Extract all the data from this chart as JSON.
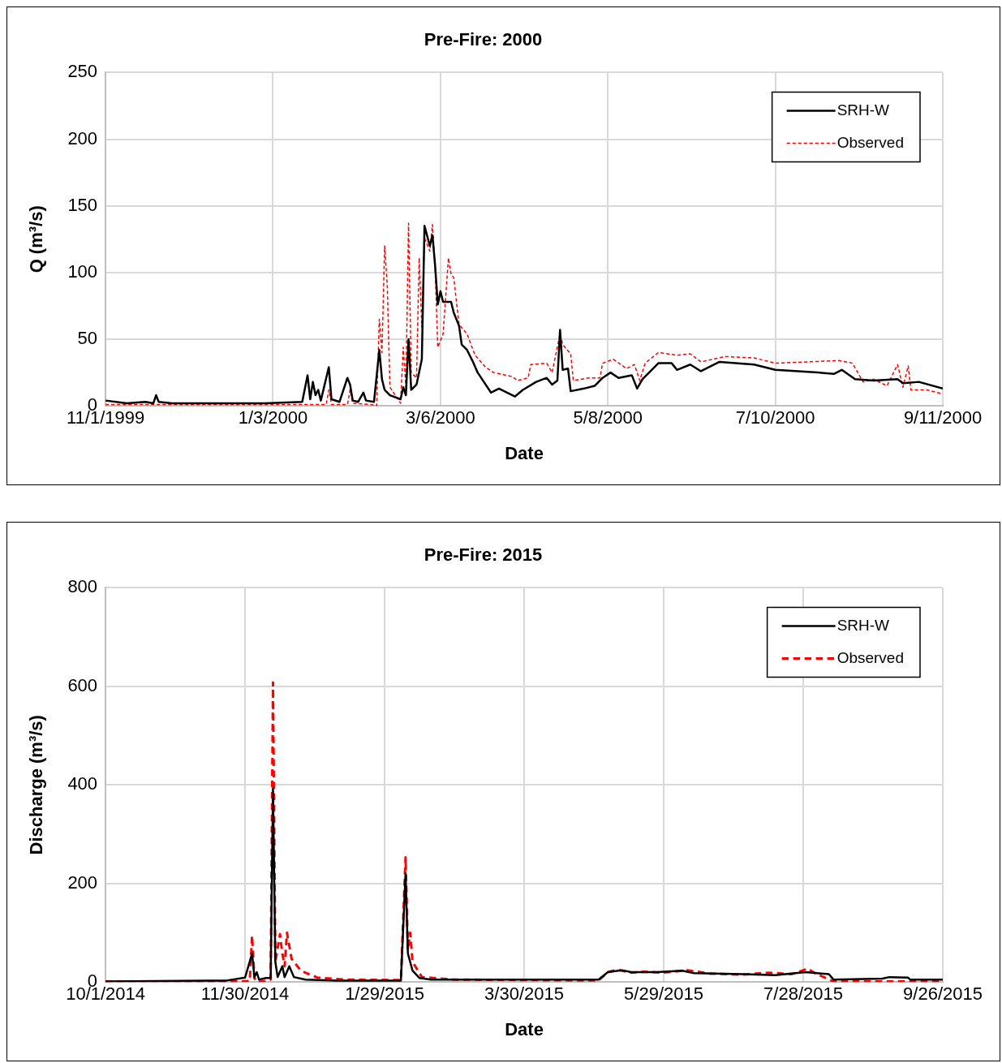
{
  "chart_data": [
    {
      "type": "line",
      "title": "Pre-Fire: 2000",
      "xlabel": "Date",
      "ylabel": "Q (m³/s)",
      "xlim": [
        "1999-11-01",
        "2000-09-11"
      ],
      "xticks": [
        {
          "value": "1999-11-01",
          "label": "11/1/1999"
        },
        {
          "value": "2000-01-03",
          "label": "1/3/2000"
        },
        {
          "value": "2000-03-06",
          "label": "3/6/2000"
        },
        {
          "value": "2000-05-08",
          "label": "5/8/2000"
        },
        {
          "value": "2000-07-10",
          "label": "7/10/2000"
        },
        {
          "value": "2000-09-11",
          "label": "9/11/2000"
        }
      ],
      "ylim": [
        0,
        250
      ],
      "yticks": [
        0,
        50,
        100,
        150,
        200,
        250
      ],
      "grid": true,
      "legend": "top right",
      "series": [
        {
          "name": "SRH-W",
          "color": "#000000",
          "line_style": "solid",
          "x": [
            "1999-11-01",
            "1999-11-09",
            "1999-11-16",
            "1999-11-19",
            "1999-11-20",
            "1999-11-21",
            "1999-11-26",
            "1999-12-31",
            "2000-01-14",
            "2000-01-16",
            "2000-01-17",
            "2000-01-18",
            "2000-01-19",
            "2000-01-20",
            "2000-01-21",
            "2000-01-24",
            "2000-01-25",
            "2000-01-28",
            "2000-01-31",
            "2000-02-01",
            "2000-02-02",
            "2000-02-04",
            "2000-02-06",
            "2000-02-07",
            "2000-02-10",
            "2000-02-12",
            "2000-02-13",
            "2000-02-14",
            "2000-02-16",
            "2000-02-20",
            "2000-02-21",
            "2000-02-22",
            "2000-02-23",
            "2000-02-24",
            "2000-02-26",
            "2000-02-28",
            "2000-02-29",
            "2000-03-02",
            "2000-03-03",
            "2000-03-04",
            "2000-03-05",
            "2000-03-06",
            "2000-03-07",
            "2000-03-10",
            "2000-03-11",
            "2000-03-13",
            "2000-03-14",
            "2000-03-16",
            "2000-03-18",
            "2000-03-20",
            "2000-03-23",
            "2000-03-25",
            "2000-03-28",
            "2000-04-03",
            "2000-04-06",
            "2000-04-11",
            "2000-04-15",
            "2000-04-17",
            "2000-04-19",
            "2000-04-20",
            "2000-04-21",
            "2000-04-23",
            "2000-04-24",
            "2000-04-29",
            "2000-05-03",
            "2000-05-06",
            "2000-05-09",
            "2000-05-12",
            "2000-05-17",
            "2000-05-19",
            "2000-05-21",
            "2000-05-27",
            "2000-06-01",
            "2000-06-03",
            "2000-06-08",
            "2000-06-12",
            "2000-06-19",
            "2000-07-02",
            "2000-07-10",
            "2000-07-26",
            "2000-08-01",
            "2000-08-04",
            "2000-08-09",
            "2000-08-16",
            "2000-08-25",
            "2000-08-27",
            "2000-09-02",
            "2000-09-11"
          ],
          "values": [
            4,
            2,
            3,
            2,
            8,
            3,
            2,
            2,
            3,
            23,
            5,
            18,
            8,
            12,
            4,
            29,
            5,
            3,
            21,
            16,
            4,
            3,
            10,
            4,
            3,
            42,
            20,
            12,
            8,
            5,
            14,
            8,
            50,
            12,
            16,
            35,
            135,
            120,
            128,
            105,
            76,
            86,
            78,
            78,
            70,
            60,
            46,
            42,
            34,
            25,
            16,
            10,
            13,
            7,
            12,
            18,
            21,
            16,
            19,
            57,
            27,
            28,
            11,
            13,
            15,
            21,
            25,
            21,
            23,
            13,
            20,
            32,
            32,
            27,
            31,
            26,
            33,
            31,
            27,
            25,
            24,
            27,
            20,
            19,
            20,
            17,
            18,
            13
          ]
        },
        {
          "name": "Observed",
          "color": "#ff0000",
          "line_style": "dashed",
          "x": [
            "1999-11-01",
            "1999-12-31",
            "2000-01-23",
            "2000-01-24",
            "2000-01-25",
            "2000-01-31",
            "2000-02-01",
            "2000-02-02",
            "2000-02-09",
            "2000-02-11",
            "2000-02-12",
            "2000-02-13",
            "2000-02-14",
            "2000-02-15",
            "2000-02-16",
            "2000-02-20",
            "2000-02-21",
            "2000-02-22",
            "2000-02-23",
            "2000-02-24",
            "2000-02-26",
            "2000-02-27",
            "2000-02-28",
            "2000-02-29",
            "2000-03-02",
            "2000-03-03",
            "2000-03-04",
            "2000-03-05",
            "2000-03-07",
            "2000-03-09",
            "2000-03-10",
            "2000-03-11",
            "2000-03-13",
            "2000-03-16",
            "2000-03-19",
            "2000-03-23",
            "2000-03-26",
            "2000-04-02",
            "2000-04-04",
            "2000-04-08",
            "2000-04-09",
            "2000-04-15",
            "2000-04-17",
            "2000-04-20",
            "2000-04-21",
            "2000-04-24",
            "2000-04-25",
            "2000-05-01",
            "2000-05-05",
            "2000-05-06",
            "2000-05-10",
            "2000-05-15",
            "2000-05-18",
            "2000-05-20",
            "2000-05-22",
            "2000-05-27",
            "2000-06-03",
            "2000-06-08",
            "2000-06-12",
            "2000-06-21",
            "2000-07-02",
            "2000-07-10",
            "2000-08-03",
            "2000-08-08",
            "2000-08-12",
            "2000-08-16",
            "2000-08-21",
            "2000-08-25",
            "2000-08-27",
            "2000-08-29",
            "2000-08-30",
            "2000-09-05",
            "2000-09-11"
          ],
          "values": [
            1,
            1,
            1,
            12,
            1,
            1,
            12,
            2,
            1,
            0,
            65,
            40,
            120,
            90,
            14,
            2,
            44,
            14,
            137,
            25,
            21,
            111,
            59,
            126,
            116,
            136,
            103,
            44,
            54,
            111,
            99,
            96,
            61,
            54,
            38,
            29,
            25,
            22,
            19,
            21,
            31,
            32,
            25,
            54,
            46,
            39,
            19,
            21,
            21,
            32,
            35,
            28,
            31,
            19,
            32,
            40,
            38,
            39,
            33,
            37,
            36,
            32,
            34,
            32,
            18,
            20,
            15,
            31,
            14,
            30,
            12,
            12,
            9
          ]
        }
      ]
    },
    {
      "type": "line",
      "title": "Pre-Fire: 2015",
      "xlabel": "Date",
      "ylabel": "Discharge (m³/s)",
      "xlim": [
        "2014-10-01",
        "2015-09-26"
      ],
      "xticks": [
        {
          "value": "2014-10-01",
          "label": "10/1/2014"
        },
        {
          "value": "2014-11-30",
          "label": "11/30/2014"
        },
        {
          "value": "2015-01-29",
          "label": "1/29/2015"
        },
        {
          "value": "2015-03-30",
          "label": "3/30/2015"
        },
        {
          "value": "2015-05-29",
          "label": "5/29/2015"
        },
        {
          "value": "2015-07-28",
          "label": "7/28/2015"
        },
        {
          "value": "2015-09-26",
          "label": "9/26/2015"
        }
      ],
      "ylim": [
        0,
        800
      ],
      "yticks": [
        0,
        200,
        400,
        600,
        800
      ],
      "grid": true,
      "legend": "top right",
      "series": [
        {
          "name": "SRH-W",
          "color": "#000000",
          "line_style": "solid",
          "x": [
            "2014-10-01",
            "2014-11-22",
            "2014-11-30",
            "2014-12-03",
            "2014-12-04",
            "2014-12-05",
            "2014-12-06",
            "2014-12-09",
            "2014-12-11",
            "2014-12-12",
            "2014-12-13",
            "2014-12-14",
            "2014-12-16",
            "2014-12-17",
            "2014-12-19",
            "2014-12-21",
            "2014-12-26",
            "2015-01-09",
            "2015-02-05",
            "2015-02-07",
            "2015-02-08",
            "2015-02-10",
            "2015-02-13",
            "2015-02-18",
            "2015-05-01",
            "2015-05-05",
            "2015-05-11",
            "2015-05-15",
            "2015-05-26",
            "2015-06-06",
            "2015-06-11",
            "2015-07-02",
            "2015-07-16",
            "2015-07-29",
            "2015-08-08",
            "2015-08-10",
            "2015-08-31",
            "2015-09-03",
            "2015-09-11",
            "2015-09-12",
            "2015-09-26"
          ],
          "values": [
            1,
            3,
            9,
            58,
            10,
            20,
            5,
            8,
            8,
            393,
            41,
            10,
            32,
            10,
            32,
            10,
            5,
            3,
            3,
            220,
            58,
            23,
            8,
            5,
            5,
            20,
            24,
            20,
            20,
            23,
            18,
            16,
            14,
            20,
            16,
            5,
            7,
            10,
            9,
            5,
            5
          ]
        },
        {
          "name": "Observed",
          "color": "#ff0000",
          "line_style": "dashed",
          "x": [
            "2014-10-01",
            "2014-11-28",
            "2014-12-02",
            "2014-12-03",
            "2014-12-04",
            "2014-12-05",
            "2014-12-09",
            "2014-12-11",
            "2014-12-12",
            "2014-12-13",
            "2014-12-15",
            "2014-12-16",
            "2014-12-17",
            "2014-12-18",
            "2014-12-20",
            "2014-12-24",
            "2014-12-31",
            "2015-01-12",
            "2015-02-05",
            "2015-02-07",
            "2015-02-08",
            "2015-02-09",
            "2015-02-10",
            "2015-02-14",
            "2015-02-28",
            "2015-05-01",
            "2015-05-05",
            "2015-05-09",
            "2015-05-15",
            "2015-05-21",
            "2015-05-29",
            "2015-06-08",
            "2015-06-18",
            "2015-07-02",
            "2015-07-13",
            "2015-07-23",
            "2015-07-30",
            "2015-08-02",
            "2015-08-10",
            "2015-09-26"
          ],
          "values": [
            1,
            1,
            2,
            94,
            8,
            0,
            2,
            5,
            608,
            41,
            97,
            58,
            32,
            100,
            47,
            23,
            9,
            5,
            4,
            253,
            65,
            100,
            41,
            10,
            5,
            3,
            20,
            25,
            19,
            21,
            19,
            24,
            17,
            15,
            19,
            16,
            27,
            18,
            1,
            1
          ]
        }
      ]
    }
  ]
}
